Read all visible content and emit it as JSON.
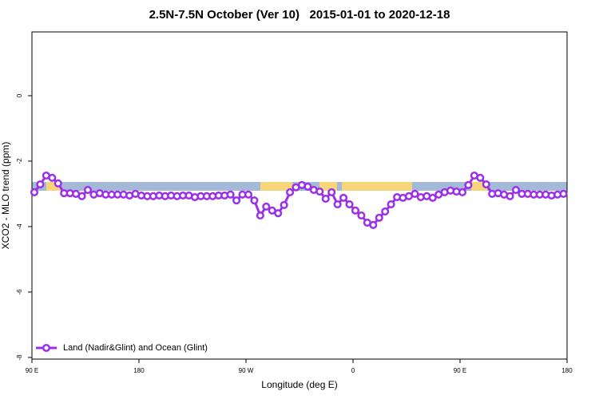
{
  "chart_data": {
    "type": "line",
    "title": "2.5N-7.5N October (Ver 10)   2015-01-01 to 2020-12-18",
    "xlabel": "Longitude (deg E)",
    "ylabel": "XCO2 - MLO trend (ppm)",
    "x": [
      92,
      97,
      102,
      107,
      112,
      117,
      122,
      127,
      132,
      137,
      142,
      147,
      152,
      157,
      162,
      167,
      172,
      177,
      182,
      187,
      192,
      197,
      202,
      207,
      212,
      217,
      222,
      227,
      232,
      237,
      242,
      247,
      252,
      257,
      262,
      267,
      272,
      277,
      282,
      287,
      292,
      297,
      302,
      307,
      312,
      317,
      322,
      327,
      332,
      337,
      342,
      347,
      352,
      357,
      362,
      367,
      372,
      377,
      382,
      387,
      392,
      397,
      402,
      407,
      412,
      417,
      422,
      427,
      432,
      437,
      442,
      447,
      452,
      457,
      462,
      467,
      472,
      477,
      482,
      487,
      492,
      497,
      502,
      507,
      512,
      517,
      522,
      527,
      532,
      537
    ],
    "series": [
      {
        "name": "Land (Nadir&Glint) and Ocean (Glint)",
        "color": "#9b30e6",
        "values": [
          -2.95,
          -2.71,
          -2.44,
          -2.51,
          -2.68,
          -2.98,
          -2.98,
          -3.0,
          -3.07,
          -2.88,
          -3.02,
          -2.98,
          -3.02,
          -3.02,
          -3.02,
          -3.02,
          -3.05,
          -3.0,
          -3.05,
          -3.07,
          -3.07,
          -3.05,
          -3.07,
          -3.05,
          -3.07,
          -3.05,
          -3.05,
          -3.1,
          -3.07,
          -3.07,
          -3.07,
          -3.05,
          -3.05,
          -3.02,
          -3.2,
          -3.02,
          -3.02,
          -3.2,
          -3.66,
          -3.39,
          -3.51,
          -3.59,
          -3.34,
          -2.95,
          -2.8,
          -2.73,
          -2.78,
          -2.88,
          -2.93,
          -3.15,
          -2.95,
          -3.32,
          -3.12,
          -3.32,
          -3.51,
          -3.66,
          -3.88,
          -3.95,
          -3.73,
          -3.54,
          -3.32,
          -3.1,
          -3.12,
          -3.07,
          -3.0,
          -3.1,
          -3.07,
          -3.12,
          -3.02,
          -2.95,
          -2.9,
          -2.93,
          -2.95,
          -2.73,
          -2.44,
          -2.51,
          -2.71,
          -3.0,
          -2.98,
          -3.02,
          -3.07,
          -2.88,
          -3.0,
          -3.0,
          -3.02,
          -3.02,
          -3.02,
          -3.05,
          -3.02,
          -3.0
        ]
      }
    ],
    "xlim": [
      90,
      540
    ],
    "xticks": [
      {
        "value": 90,
        "label": "90 E"
      },
      180,
      {
        "value": 270,
        "label": "90 W"
      },
      {
        "value": 360,
        "label": "0"
      },
      {
        "value": 450,
        "label": "90 E"
      },
      {
        "value": 540,
        "label": "180"
      }
    ],
    "ylim": [
      -8.05,
      1.95
    ],
    "yticks": [
      0,
      -2,
      -4,
      -6,
      -8
    ],
    "legend": "bottom-left"
  }
}
